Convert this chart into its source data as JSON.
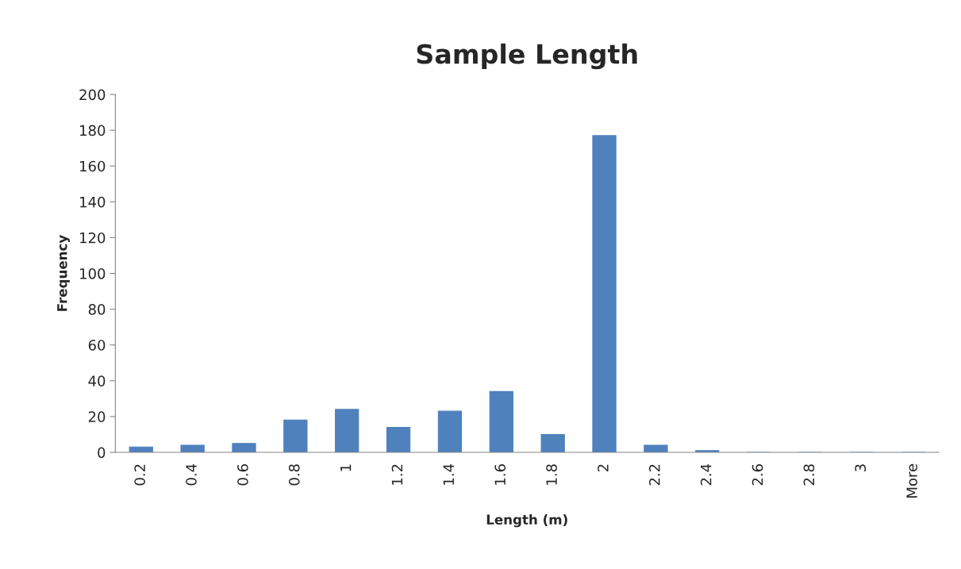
{
  "chart_data": {
    "type": "bar",
    "title": "Sample Length",
    "xlabel": "Length (m)",
    "ylabel": "Frequency",
    "categories": [
      "0.2",
      "0.4",
      "0.6",
      "0.8",
      "1",
      "1.2",
      "1.4",
      "1.6",
      "1.8",
      "2",
      "2.2",
      "2.4",
      "2.6",
      "2.8",
      "3",
      "More"
    ],
    "values": [
      3,
      4,
      5,
      18,
      24,
      14,
      23,
      34,
      10,
      177,
      4,
      1,
      0,
      0,
      0,
      0
    ],
    "color": "#4f81bd",
    "ylim": [
      0,
      200
    ],
    "yticks": [
      0,
      20,
      40,
      60,
      80,
      100,
      120,
      140,
      160,
      180,
      200
    ],
    "grid": false,
    "legend": false
  }
}
